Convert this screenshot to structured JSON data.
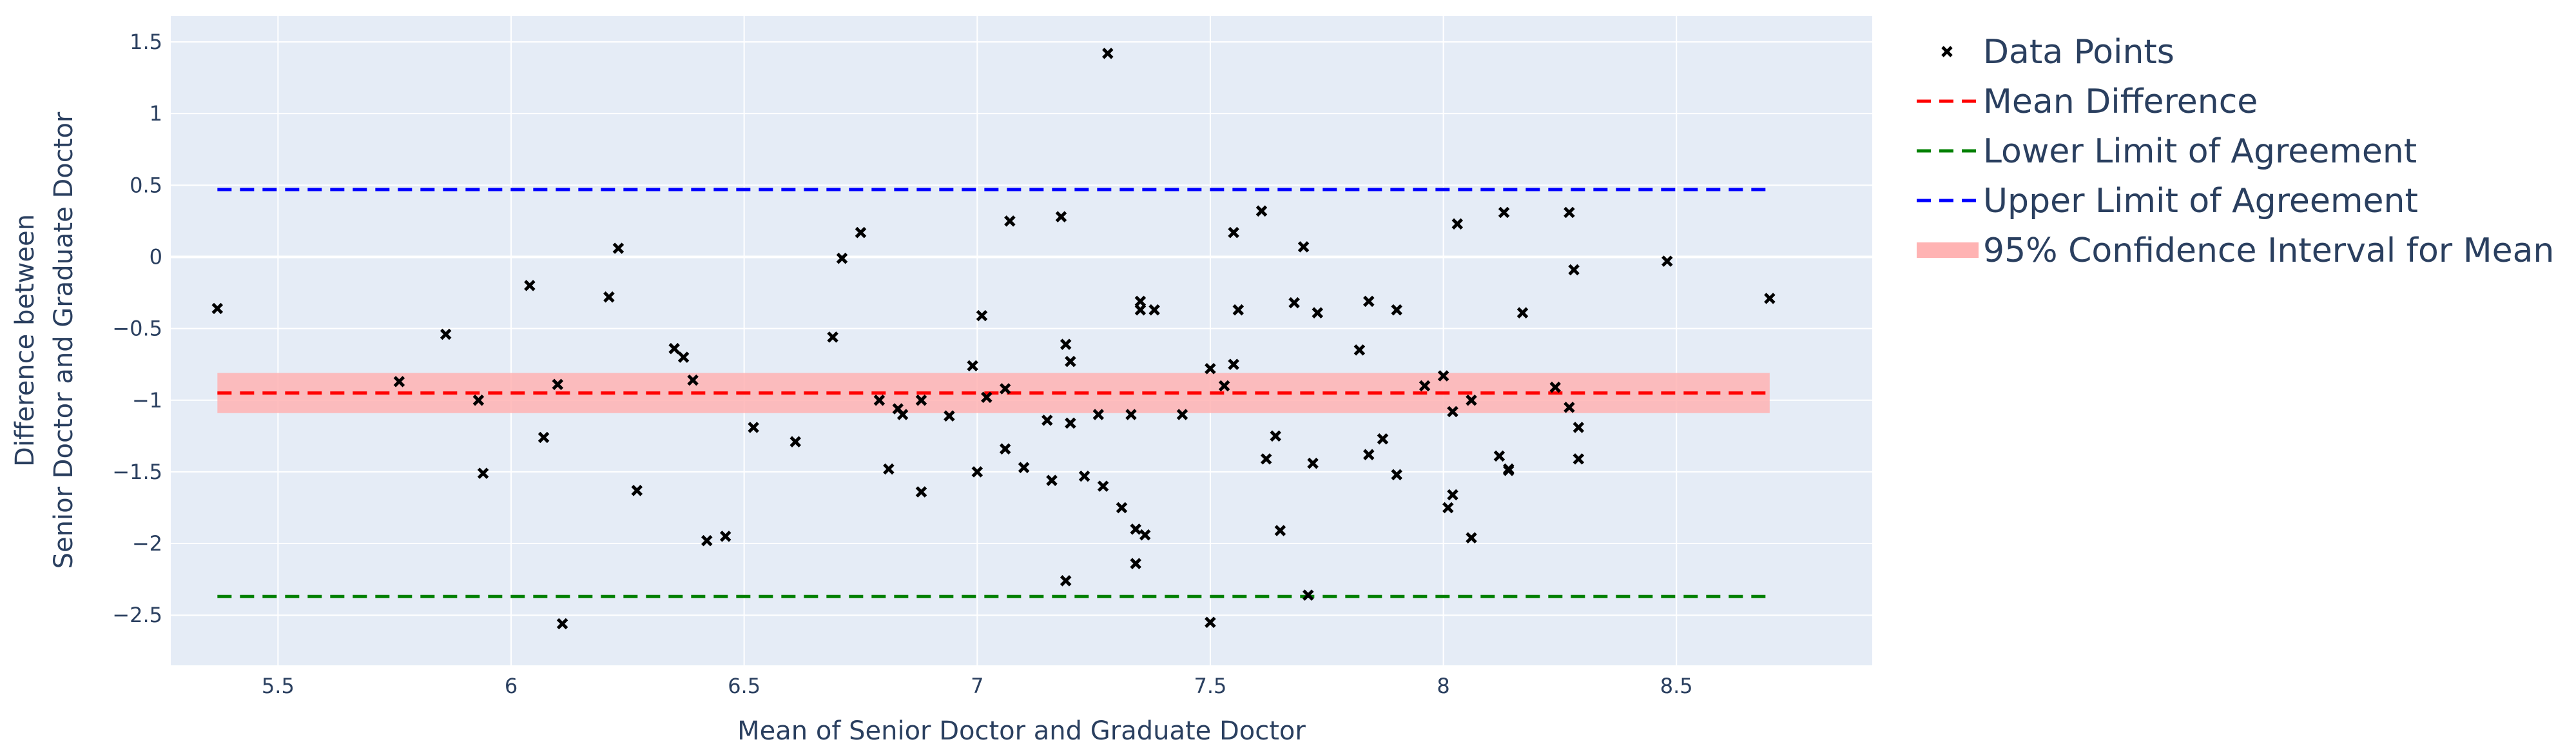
{
  "chart_data": {
    "type": "scatter",
    "title": "",
    "xlabel": "Mean of Senior Doctor and Graduate Doctor",
    "ylabel_lines": [
      "Difference between",
      "Senior Doctor and Graduate Doctor"
    ],
    "xlim": [
      5.27,
      8.92
    ],
    "ylim": [
      -2.85,
      1.68
    ],
    "x_ticks": [
      5.5,
      6,
      6.5,
      7,
      7.5,
      8,
      8.5
    ],
    "x_tick_labels": [
      "5.5",
      "6",
      "6.5",
      "7",
      "7.5",
      "8",
      "8.5"
    ],
    "y_ticks": [
      1.5,
      1,
      0.5,
      0,
      -0.5,
      -1,
      -1.5,
      -2,
      -2.5
    ],
    "y_tick_labels": [
      "1.5",
      "1",
      "0.5",
      "0",
      "−0.5",
      "−1",
      "−1.5",
      "−2",
      "−2.5"
    ],
    "grid": true,
    "legend_position": "right",
    "colors": {
      "plot_bg": "#e5ecf6",
      "grid": "#ffffff",
      "points": "#000000",
      "mean": "#ff0000",
      "lower": "#008000",
      "upper": "#0000ff",
      "ci_band": "#ffb3b3",
      "text": "#2a3f5f"
    },
    "series": [
      {
        "name": "Data Points",
        "mode": "markers",
        "marker": "x",
        "points": [
          [
            5.37,
            -0.36
          ],
          [
            5.76,
            -0.87
          ],
          [
            5.86,
            -0.54
          ],
          [
            5.93,
            -1.0
          ],
          [
            5.94,
            -1.51
          ],
          [
            6.04,
            -0.2
          ],
          [
            6.07,
            -1.26
          ],
          [
            6.1,
            -0.89
          ],
          [
            6.11,
            -2.56
          ],
          [
            6.21,
            -0.28
          ],
          [
            6.23,
            0.06
          ],
          [
            6.27,
            -1.63
          ],
          [
            6.35,
            -0.64
          ],
          [
            6.37,
            -0.7
          ],
          [
            6.39,
            -0.86
          ],
          [
            6.42,
            -1.98
          ],
          [
            6.46,
            -1.95
          ],
          [
            6.52,
            -1.19
          ],
          [
            6.61,
            -1.29
          ],
          [
            6.69,
            -0.56
          ],
          [
            6.71,
            -0.01
          ],
          [
            6.75,
            0.17
          ],
          [
            6.79,
            -1.0
          ],
          [
            6.81,
            -1.48
          ],
          [
            6.83,
            -1.06
          ],
          [
            6.84,
            -1.1
          ],
          [
            6.88,
            -1.64
          ],
          [
            6.88,
            -1.0
          ],
          [
            6.94,
            -1.11
          ],
          [
            6.99,
            -0.76
          ],
          [
            7.0,
            -1.5
          ],
          [
            7.01,
            -0.41
          ],
          [
            7.02,
            -0.98
          ],
          [
            7.06,
            -0.92
          ],
          [
            7.06,
            -1.34
          ],
          [
            7.07,
            0.25
          ],
          [
            7.1,
            -1.47
          ],
          [
            7.15,
            -1.14
          ],
          [
            7.16,
            -1.56
          ],
          [
            7.18,
            0.28
          ],
          [
            7.19,
            -0.61
          ],
          [
            7.19,
            -2.26
          ],
          [
            7.2,
            -1.16
          ],
          [
            7.2,
            -0.73
          ],
          [
            7.23,
            -1.53
          ],
          [
            7.26,
            -1.1
          ],
          [
            7.27,
            -1.6
          ],
          [
            7.28,
            1.42
          ],
          [
            7.31,
            -1.75
          ],
          [
            7.33,
            -1.1
          ],
          [
            7.34,
            -2.14
          ],
          [
            7.34,
            -1.9
          ],
          [
            7.35,
            -0.31
          ],
          [
            7.35,
            -0.37
          ],
          [
            7.36,
            -1.94
          ],
          [
            7.38,
            -0.37
          ],
          [
            7.44,
            -1.1
          ],
          [
            7.5,
            -2.55
          ],
          [
            7.5,
            -0.78
          ],
          [
            7.53,
            -0.9
          ],
          [
            7.55,
            -0.75
          ],
          [
            7.55,
            0.17
          ],
          [
            7.56,
            -0.37
          ],
          [
            7.61,
            0.32
          ],
          [
            7.62,
            -1.41
          ],
          [
            7.64,
            -1.25
          ],
          [
            7.65,
            -1.91
          ],
          [
            7.68,
            -0.32
          ],
          [
            7.7,
            0.07
          ],
          [
            7.71,
            -2.36
          ],
          [
            7.72,
            -1.44
          ],
          [
            7.73,
            -0.39
          ],
          [
            7.82,
            -0.65
          ],
          [
            7.84,
            -1.38
          ],
          [
            7.84,
            -0.31
          ],
          [
            7.87,
            -1.27
          ],
          [
            7.9,
            -0.37
          ],
          [
            7.9,
            -1.52
          ],
          [
            7.96,
            -0.9
          ],
          [
            8.0,
            -0.83
          ],
          [
            8.01,
            -1.75
          ],
          [
            8.02,
            -1.66
          ],
          [
            8.02,
            -1.08
          ],
          [
            8.03,
            0.23
          ],
          [
            8.06,
            -1.0
          ],
          [
            8.06,
            -1.96
          ],
          [
            8.12,
            -1.39
          ],
          [
            8.13,
            0.31
          ],
          [
            8.14,
            -1.49
          ],
          [
            8.14,
            -1.48
          ],
          [
            8.17,
            -0.39
          ],
          [
            8.24,
            -0.91
          ],
          [
            8.27,
            0.31
          ],
          [
            8.27,
            -1.05
          ],
          [
            8.28,
            -0.09
          ],
          [
            8.29,
            -1.19
          ],
          [
            8.29,
            -1.41
          ],
          [
            8.48,
            -0.03
          ],
          [
            8.7,
            -0.29
          ]
        ]
      },
      {
        "name": "Mean Difference",
        "mode": "dashed-line",
        "y": -0.95,
        "x_range": [
          5.37,
          8.7
        ]
      },
      {
        "name": "Lower Limit of Agreement",
        "mode": "dashed-line",
        "y": -2.37,
        "x_range": [
          5.37,
          8.7
        ]
      },
      {
        "name": "Upper Limit of Agreement",
        "mode": "dashed-line",
        "y": 0.47,
        "x_range": [
          5.37,
          8.7
        ]
      },
      {
        "name": "95% Confidence Interval for Mean",
        "mode": "band",
        "y_range": [
          -1.09,
          -0.81
        ],
        "x_range": [
          5.37,
          8.7
        ]
      }
    ]
  }
}
